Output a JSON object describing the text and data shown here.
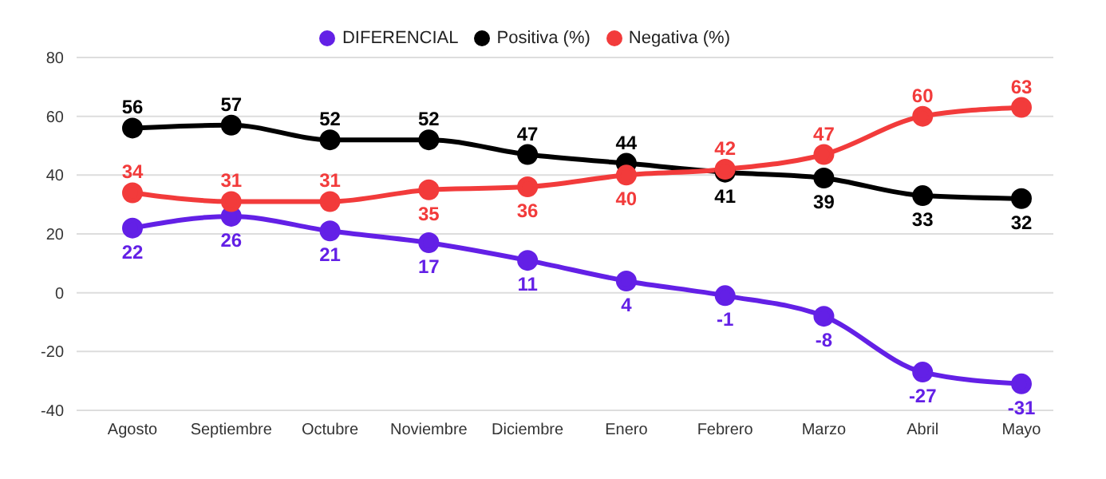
{
  "chart_data": {
    "type": "line",
    "categories": [
      "Agosto",
      "Septiembre",
      "Octubre",
      "Noviembre",
      "Diciembre",
      "Enero",
      "Febrero",
      "Marzo",
      "Abril",
      "Mayo"
    ],
    "series": [
      {
        "name": "DIFERENCIAL",
        "color": "#6320e6",
        "values": [
          22,
          26,
          21,
          17,
          11,
          4,
          -1,
          -8,
          -27,
          -31
        ]
      },
      {
        "name": "Positiva (%)",
        "color": "#000000",
        "values": [
          56,
          57,
          52,
          52,
          47,
          44,
          41,
          39,
          33,
          32
        ]
      },
      {
        "name": "Negativa (%)",
        "color": "#f23b3b",
        "values": [
          34,
          31,
          31,
          35,
          36,
          40,
          42,
          47,
          60,
          63
        ]
      }
    ],
    "ylim": [
      -40,
      80
    ],
    "yticks": [
      -40,
      -20,
      0,
      20,
      40,
      60,
      80
    ],
    "grid": "y",
    "legend": "top",
    "marker": "circle",
    "line_style": "solid",
    "data_labels": true
  }
}
